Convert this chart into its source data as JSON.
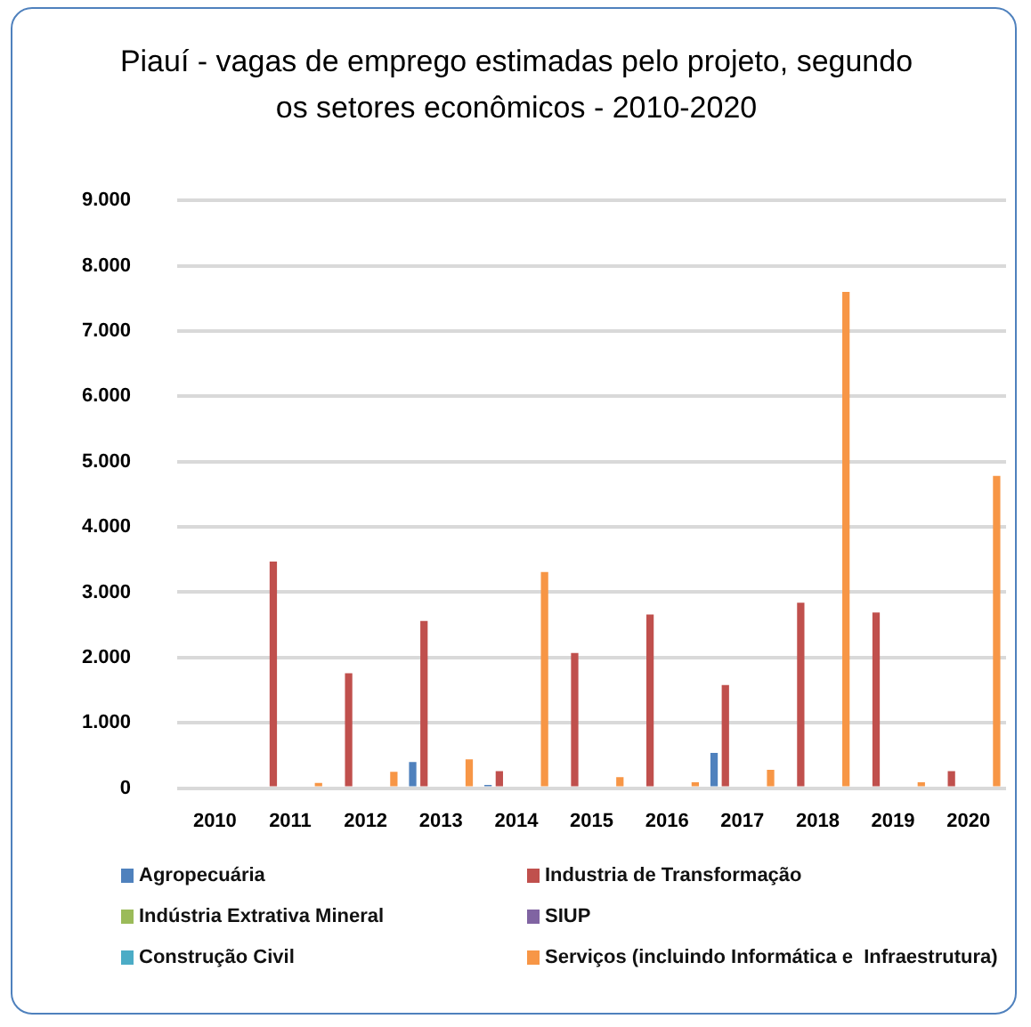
{
  "chart_data": {
    "type": "bar",
    "title": "Piauí - vagas de emprego estimadas pelo projeto, segundo os setores econômicos - 2010-2020",
    "categories": [
      "2010",
      "2011",
      "2012",
      "2013",
      "2014",
      "2015",
      "2016",
      "2017",
      "2018",
      "2019",
      "2020"
    ],
    "series": [
      {
        "name": "Agropecuária",
        "color": "#4f81bd",
        "values": [
          0,
          0,
          0,
          400,
          50,
          0,
          0,
          540,
          0,
          0,
          0
        ]
      },
      {
        "name": "Industria de Transformação",
        "color": "#c0504d",
        "values": [
          0,
          3470,
          1760,
          2560,
          260,
          2070,
          2660,
          1580,
          2840,
          2690,
          260
        ]
      },
      {
        "name": "Indústria Extrativa Mineral",
        "color": "#9bbb59",
        "values": [
          0,
          0,
          0,
          0,
          0,
          0,
          0,
          0,
          0,
          0,
          0
        ]
      },
      {
        "name": "SIUP",
        "color": "#8064a2",
        "values": [
          0,
          0,
          0,
          0,
          0,
          0,
          0,
          0,
          0,
          0,
          0
        ]
      },
      {
        "name": "Construção Civil",
        "color": "#4bacc6",
        "values": [
          0,
          0,
          0,
          0,
          0,
          0,
          0,
          0,
          0,
          0,
          0
        ]
      },
      {
        "name": "Serviços (incluindo Informática e  Infraestrutura)",
        "color": "#f79646",
        "values": [
          0,
          80,
          250,
          440,
          3310,
          170,
          90,
          280,
          7600,
          90,
          4780
        ]
      }
    ],
    "ylim": [
      0,
      9000
    ],
    "yticks": [
      {
        "value": 0,
        "label": "0"
      },
      {
        "value": 1000,
        "label": "1.000"
      },
      {
        "value": 2000,
        "label": "2.000"
      },
      {
        "value": 3000,
        "label": "3.000"
      },
      {
        "value": 4000,
        "label": "4.000"
      },
      {
        "value": 5000,
        "label": "5.000"
      },
      {
        "value": 6000,
        "label": "6.000"
      },
      {
        "value": 7000,
        "label": "7.000"
      },
      {
        "value": 8000,
        "label": "8.000"
      },
      {
        "value": 9000,
        "label": "9.000"
      }
    ],
    "grid": "y",
    "legend": "bottom"
  }
}
